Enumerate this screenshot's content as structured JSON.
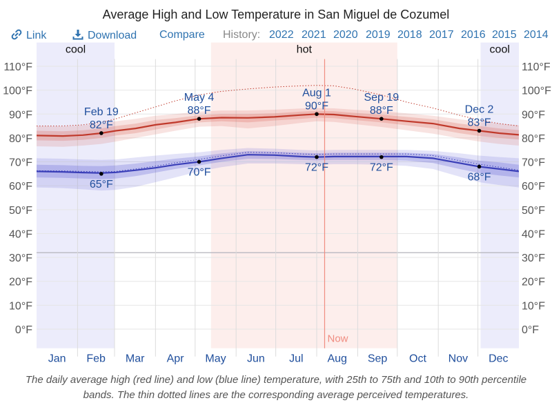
{
  "header": {
    "title": "Average High and Low Temperature in San Miguel de Cozumel"
  },
  "toolbar": {
    "link_label": "Link",
    "link_icon": "link-icon",
    "download_label": "Download",
    "download_icon": "download-icon",
    "compare_label": "Compare",
    "history_label": "History:",
    "history_years": [
      "2022",
      "2021",
      "2020",
      "2019",
      "2018",
      "2017",
      "2016",
      "2015",
      "2014"
    ]
  },
  "caption": "The daily average high (red line) and low (blue line) temperature, with 25th to 75th and 10th to 90th percentile bands. The thin dotted lines are the corresponding average perceived temperatures.",
  "colors": {
    "high_line": "#c0392b",
    "low_line": "#3a3fb8",
    "cool_band": "#ececfb",
    "hot_band": "#fdeeec",
    "now_line": "#f08c80",
    "link": "#2f73b0",
    "axis_month": "#1f4e9c"
  },
  "chart_data": {
    "type": "line",
    "title": "Average High and Low Temperature in San Miguel de Cozumel",
    "xlabel": "",
    "ylabel": "",
    "x_unit": "day of year",
    "x_range": [
      0,
      365
    ],
    "ylim": [
      -8,
      113
    ],
    "y_ticks": [
      0,
      10,
      20,
      30,
      40,
      50,
      60,
      70,
      80,
      90,
      100,
      110
    ],
    "y_tick_labels": [
      "0°F",
      "10°F",
      "20°F",
      "30°F",
      "40°F",
      "50°F",
      "60°F",
      "70°F",
      "80°F",
      "90°F",
      "100°F",
      "110°F"
    ],
    "freezing_line": 32,
    "grid": true,
    "months": [
      "Jan",
      "Feb",
      "Mar",
      "Apr",
      "May",
      "Jun",
      "Jul",
      "Aug",
      "Sep",
      "Oct",
      "Nov",
      "Dec"
    ],
    "month_starts": [
      0,
      31,
      59,
      90,
      120,
      151,
      181,
      212,
      243,
      273,
      304,
      334
    ],
    "seasons": [
      {
        "label": "cool",
        "kind": "cool",
        "start": 0,
        "end": 59
      },
      {
        "label": "hot",
        "kind": "hot",
        "start": 132,
        "end": 273
      },
      {
        "label": "cool",
        "kind": "cool",
        "start": 336,
        "end": 365
      }
    ],
    "now": {
      "label": "Now",
      "day": 218
    },
    "series": [
      {
        "name": "Average high",
        "x": [
          0,
          20,
          35,
          49,
          60,
          75,
          90,
          105,
          123,
          140,
          160,
          180,
          200,
          212,
          225,
          240,
          261,
          280,
          300,
          320,
          335,
          350,
          365
        ],
        "values": [
          81,
          80.8,
          81.2,
          82,
          83,
          84,
          85.5,
          86.5,
          88,
          88.5,
          88.4,
          88.8,
          89.6,
          90,
          89.8,
          89,
          88,
          87,
          86,
          84,
          83,
          82,
          81.3
        ],
        "p25": [
          79,
          78.8,
          79.2,
          80,
          81,
          82,
          83.5,
          85,
          86.5,
          87,
          86.5,
          87.3,
          88,
          88.5,
          88.3,
          87.5,
          86.5,
          85.3,
          84,
          82,
          80.8,
          80,
          79.3
        ],
        "p75": [
          83,
          82.8,
          83.2,
          84,
          85,
          86,
          87.5,
          88.3,
          89.5,
          90,
          90,
          90.3,
          91,
          91.3,
          91.2,
          90.5,
          89.7,
          88.8,
          87.8,
          86,
          85,
          84,
          83.3
        ],
        "p10": [
          76.5,
          76.3,
          76.8,
          77.5,
          78.5,
          80,
          81.5,
          83,
          84.7,
          85,
          84,
          85,
          86.3,
          87,
          86.7,
          85.8,
          84.6,
          83.2,
          81.8,
          79.8,
          78.5,
          77.5,
          76.8
        ],
        "p90": [
          85,
          84.8,
          85.3,
          86,
          87,
          88,
          89.3,
          90,
          91,
          91.5,
          91.5,
          91.8,
          92.3,
          92.5,
          92.4,
          91.8,
          91.2,
          90.3,
          89.3,
          87.8,
          86.8,
          86,
          85.3
        ],
        "perceived": [
          85,
          85,
          85.5,
          86.5,
          88,
          90.5,
          93,
          95.5,
          98,
          99.5,
          100.5,
          101.3,
          101.8,
          102,
          101.8,
          100.5,
          98,
          95,
          92.5,
          89.5,
          87.5,
          86,
          85
        ]
      },
      {
        "name": "Average low",
        "x": [
          0,
          20,
          35,
          49,
          60,
          75,
          90,
          105,
          123,
          140,
          160,
          180,
          200,
          212,
          225,
          240,
          261,
          280,
          300,
          320,
          335,
          350,
          365
        ],
        "values": [
          66,
          65.8,
          65.5,
          65.3,
          65.6,
          66.5,
          67.5,
          68.8,
          70,
          71.5,
          73,
          72.8,
          72.2,
          72,
          72.2,
          72.2,
          72.2,
          72.2,
          71.5,
          69.5,
          68,
          67,
          66
        ],
        "p25": [
          63.5,
          63.3,
          63,
          62.8,
          63,
          64,
          65.5,
          67,
          68.5,
          70,
          71.3,
          71.2,
          70.8,
          70.6,
          70.8,
          70.8,
          70.8,
          70.5,
          69.5,
          67,
          65.3,
          64.3,
          63.5
        ],
        "p75": [
          68.8,
          68.6,
          68.3,
          68.2,
          68.5,
          69.3,
          70.3,
          71.3,
          72.3,
          73.5,
          74.5,
          74.3,
          73.8,
          73.6,
          73.8,
          73.8,
          73.8,
          73.8,
          73.3,
          71.8,
          70.5,
          69.8,
          68.8
        ],
        "p10": [
          59.3,
          59,
          58.5,
          58,
          58.3,
          59.5,
          61.5,
          63.5,
          66,
          67.8,
          69.3,
          69.3,
          69,
          68.8,
          69,
          69,
          68.8,
          68.3,
          67,
          63.8,
          61.5,
          60.3,
          59.3
        ],
        "p90": [
          71.5,
          71.3,
          71,
          70.8,
          71,
          71.8,
          72.6,
          73.3,
          74,
          75,
          75.8,
          75.5,
          75,
          74.8,
          75,
          75,
          75,
          75,
          74.6,
          73.6,
          72.6,
          72,
          71.5
        ],
        "perceived": [
          66.3,
          66.2,
          66,
          65.8,
          66,
          67,
          68.2,
          69.6,
          71,
          72.5,
          74,
          73.8,
          73.3,
          73.1,
          73.3,
          73.3,
          73.3,
          73.3,
          72.6,
          70.5,
          69,
          67.8,
          66.5
        ]
      }
    ],
    "annotations": [
      {
        "series": "high",
        "day": 49,
        "value": 82,
        "date": "Feb 19",
        "text": "82°F",
        "position": "above"
      },
      {
        "series": "high",
        "day": 123,
        "value": 88,
        "date": "May 4",
        "text": "88°F",
        "position": "above"
      },
      {
        "series": "high",
        "day": 212,
        "value": 90,
        "date": "Aug 1",
        "text": "90°F",
        "position": "above"
      },
      {
        "series": "high",
        "day": 261,
        "value": 88,
        "date": "Sep 19",
        "text": "88°F",
        "position": "above"
      },
      {
        "series": "high",
        "day": 335,
        "value": 83,
        "date": "Dec 2",
        "text": "83°F",
        "position": "above"
      },
      {
        "series": "low",
        "day": 49,
        "value": 65,
        "date": "",
        "text": "65°F",
        "position": "below"
      },
      {
        "series": "low",
        "day": 123,
        "value": 70,
        "date": "",
        "text": "70°F",
        "position": "below"
      },
      {
        "series": "low",
        "day": 212,
        "value": 72,
        "date": "",
        "text": "72°F",
        "position": "below"
      },
      {
        "series": "low",
        "day": 261,
        "value": 72,
        "date": "",
        "text": "72°F",
        "position": "below"
      },
      {
        "series": "low",
        "day": 335,
        "value": 68,
        "date": "",
        "text": "68°F",
        "position": "below"
      }
    ]
  }
}
